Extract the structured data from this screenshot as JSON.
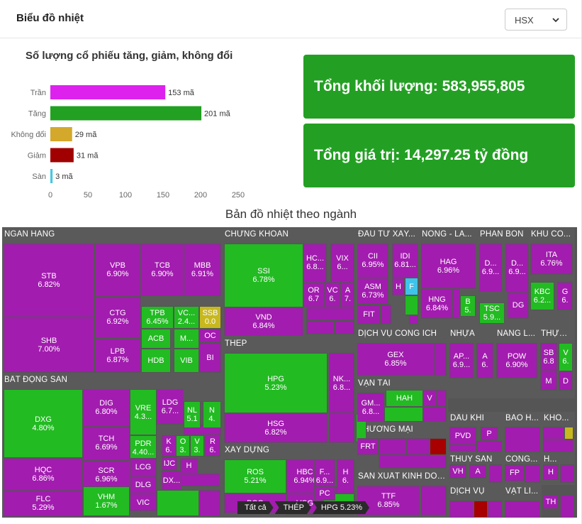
{
  "header": {
    "title": "Biểu đồ nhiệt",
    "exchange": "HSX"
  },
  "chart_data": {
    "type": "bar",
    "orientation": "horizontal",
    "title": "Số lượng cổ phiếu tăng, giảm, không đổi",
    "categories": [
      "Trần",
      "Tăng",
      "Không đổi",
      "Giảm",
      "Sàn"
    ],
    "values": [
      153,
      201,
      29,
      31,
      3
    ],
    "value_labels": [
      "153 mã",
      "201 mã",
      "29 mã",
      "31 mã",
      "3 mã"
    ],
    "colors": [
      "#dd22ee",
      "#22a022",
      "#d4a82a",
      "#a00000",
      "#46c8e0"
    ],
    "xlim": [
      0,
      250
    ],
    "xticks": [
      "0",
      "50",
      "100",
      "150",
      "200",
      "250"
    ],
    "xlabel": "",
    "ylabel": "",
    "grid": false
  },
  "stats": {
    "volume": "Tổng khối lượng: 583,955,805",
    "value": "Tổng giá trị: 14,297.25 tỷ đồng"
  },
  "heatmap": {
    "title": "Bản đồ nhiệt theo ngành",
    "colors": {
      "ceiling": "#a21caf",
      "up": "#22bb22",
      "flat": "#c8b820",
      "down": "#a80000"
    },
    "sectors": [
      {
        "label": "NGÂN HÀNG",
        "tiles": [
          {
            "t": "STB",
            "v": "6.82%",
            "c": "ceiling"
          },
          {
            "t": "VPB",
            "v": "6.90%",
            "c": "ceiling"
          },
          {
            "t": "TCB",
            "v": "6.90%",
            "c": "ceiling"
          },
          {
            "t": "MBB",
            "v": "6.91%",
            "c": "ceiling"
          },
          {
            "t": "CTG",
            "v": "6.92%",
            "c": "ceiling"
          },
          {
            "t": "TPB",
            "v": "6.45%",
            "c": "up"
          },
          {
            "t": "VC...",
            "v": "2.4...",
            "c": "up"
          },
          {
            "t": "SSB",
            "v": "0.0",
            "c": "flat"
          },
          {
            "t": "ACB",
            "v": "",
            "c": "up"
          },
          {
            "t": "M...",
            "v": "",
            "c": "up"
          },
          {
            "t": "OC",
            "v": "",
            "c": "ceiling"
          },
          {
            "t": "SHB",
            "v": "7.00%",
            "c": "ceiling"
          },
          {
            "t": "LPB",
            "v": "6.87%",
            "c": "ceiling"
          },
          {
            "t": "HDB",
            "v": "",
            "c": "up"
          },
          {
            "t": "VIB",
            "v": "",
            "c": "up"
          },
          {
            "t": "BI",
            "v": "",
            "c": "ceiling"
          }
        ]
      },
      {
        "label": "CHỨNG KHOÁN",
        "tiles": [
          {
            "t": "SSI",
            "v": "6.78%",
            "c": "up"
          },
          {
            "t": "HC...",
            "v": "6.8...",
            "c": "ceiling"
          },
          {
            "t": "VIX",
            "v": "6...",
            "c": "ceiling"
          },
          {
            "t": "OR",
            "v": "6.7",
            "c": "ceiling"
          },
          {
            "t": "VC",
            "v": "6.",
            "c": "ceiling"
          },
          {
            "t": "A",
            "v": "7.",
            "c": "ceiling"
          },
          {
            "t": "VND",
            "v": "6.84%",
            "c": "ceiling"
          }
        ]
      },
      {
        "label": "ĐẦU TƯ XÂY...",
        "tiles": [
          {
            "t": "CII",
            "v": "6.95%",
            "c": "ceiling"
          },
          {
            "t": "IDI",
            "v": "6.81...",
            "c": "ceiling"
          },
          {
            "t": "ASM",
            "v": "6.73%",
            "c": "ceiling"
          },
          {
            "t": "H",
            "v": "",
            "c": "ceiling"
          },
          {
            "t": "F",
            "v": "",
            "c": "floor"
          },
          {
            "t": "FIT",
            "v": "",
            "c": "ceiling"
          }
        ]
      },
      {
        "label": "NÔNG - LÂ...",
        "tiles": [
          {
            "t": "HAG",
            "v": "6.96%",
            "c": "ceiling"
          },
          {
            "t": "HNG",
            "v": "6.84%",
            "c": "ceiling"
          },
          {
            "t": "B",
            "v": "5.",
            "c": "up"
          }
        ]
      },
      {
        "label": "PHÂN BÓN",
        "tiles": [
          {
            "t": "D...",
            "v": "6.9...",
            "c": "ceiling"
          },
          {
            "t": "D...",
            "v": "6.9...",
            "c": "ceiling"
          },
          {
            "t": "TSC",
            "v": "5.9...",
            "c": "up"
          },
          {
            "t": "DG",
            "v": "",
            "c": "ceiling"
          }
        ]
      },
      {
        "label": "KHU CÔ...",
        "tiles": [
          {
            "t": "ITA",
            "v": "6.76%",
            "c": "ceiling"
          },
          {
            "t": "KBC",
            "v": "6.2...",
            "c": "up"
          },
          {
            "t": "G",
            "v": "6.",
            "c": "ceiling"
          }
        ]
      },
      {
        "label": "DỊCH VỤ CÔNG ÍCH",
        "tiles": [
          {
            "t": "GEX",
            "v": "6.85%",
            "c": "ceiling"
          }
        ]
      },
      {
        "label": "NHỰA",
        "tiles": [
          {
            "t": "AP...",
            "v": "6.9...",
            "c": "ceiling"
          },
          {
            "t": "A",
            "v": "6.",
            "c": "ceiling"
          }
        ]
      },
      {
        "label": "NĂNG L...",
        "tiles": [
          {
            "t": "POW",
            "v": "6.90%",
            "c": "ceiling"
          }
        ]
      },
      {
        "label": "THỰC ...",
        "tiles": [
          {
            "t": "SB",
            "v": "6.8",
            "c": "ceiling"
          },
          {
            "t": "V",
            "v": "6.",
            "c": "up"
          },
          {
            "t": "M",
            "v": "",
            "c": "ceiling"
          },
          {
            "t": "D",
            "v": "",
            "c": "ceiling"
          }
        ]
      },
      {
        "label": "THÉP",
        "tiles": [
          {
            "t": "HPG",
            "v": "5.23%",
            "c": "up"
          },
          {
            "t": "NK...",
            "v": "6.8...",
            "c": "ceiling"
          },
          {
            "t": "HSG",
            "v": "6.82%",
            "c": "ceiling"
          }
        ]
      },
      {
        "label": "VẬN TẢI",
        "tiles": [
          {
            "t": "HAH",
            "v": "",
            "c": "up"
          },
          {
            "t": "GM...",
            "v": "6.8...",
            "c": "ceiling"
          },
          {
            "t": "V",
            "v": "",
            "c": "ceiling"
          }
        ]
      },
      {
        "label": "DẦU KHÍ",
        "tiles": [
          {
            "t": "PVD",
            "v": "",
            "c": "ceiling"
          },
          {
            "t": "P",
            "v": "",
            "c": "ceiling"
          }
        ]
      },
      {
        "label": "BẢO H...",
        "tiles": []
      },
      {
        "label": "KHO...",
        "tiles": []
      },
      {
        "label": "BẤT ĐỘNG SẢN",
        "tiles": [
          {
            "t": "DXG",
            "v": "4.80%",
            "c": "up"
          },
          {
            "t": "DIG",
            "v": "6.80%",
            "c": "ceiling"
          },
          {
            "t": "VRE",
            "v": "4.3...",
            "c": "up"
          },
          {
            "t": "LDG",
            "v": "6.7...",
            "c": "ceiling"
          },
          {
            "t": "NL",
            "v": "5.1",
            "c": "up"
          },
          {
            "t": "N",
            "v": "4.",
            "c": "up"
          },
          {
            "t": "TCH",
            "v": "6.69%",
            "c": "ceiling"
          },
          {
            "t": "PDR",
            "v": "4.40...",
            "c": "up"
          },
          {
            "t": "K",
            "v": "6.",
            "c": "ceiling"
          },
          {
            "t": "O",
            "v": "3.",
            "c": "up"
          },
          {
            "t": "V",
            "v": "3.",
            "c": "up"
          },
          {
            "t": "R",
            "v": "6.",
            "c": "ceiling"
          },
          {
            "t": "HQC",
            "v": "6.86%",
            "c": "ceiling"
          },
          {
            "t": "SCR",
            "v": "6.96%",
            "c": "ceiling"
          },
          {
            "t": "LCG",
            "v": "",
            "c": "ceiling"
          },
          {
            "t": "IJC",
            "v": "",
            "c": "ceiling"
          },
          {
            "t": "H",
            "v": "",
            "c": "ceiling"
          },
          {
            "t": "DLG",
            "v": "",
            "c": "ceiling"
          },
          {
            "t": "DX...",
            "v": "",
            "c": "ceiling"
          },
          {
            "t": "FLC",
            "v": "5.29%",
            "c": "ceiling"
          },
          {
            "t": "VHM",
            "v": "1.67%",
            "c": "up"
          },
          {
            "t": "VIC",
            "v": "",
            "c": "ceiling"
          }
        ]
      },
      {
        "label": "XÂY DỰNG",
        "tiles": [
          {
            "t": "ROS",
            "v": "5.21%",
            "c": "up"
          },
          {
            "t": "HBC",
            "v": "6.94%",
            "c": "ceiling"
          },
          {
            "t": "F...",
            "v": "6.9...",
            "c": "ceiling"
          },
          {
            "t": "H",
            "v": "6.",
            "c": "ceiling"
          },
          {
            "t": "BCG",
            "v": "",
            "c": "ceiling"
          },
          {
            "t": "VCG",
            "v": "",
            "c": "ceiling"
          },
          {
            "t": "PC",
            "v": "",
            "c": "ceiling"
          }
        ]
      },
      {
        "label": "THƯƠNG MẠI",
        "tiles": [
          {
            "t": "FRT",
            "v": "",
            "c": "ceiling"
          }
        ]
      },
      {
        "label": "SẢN XUẤT KINH DOA...",
        "tiles": [
          {
            "t": "TTF",
            "v": "6.85%",
            "c": "ceiling"
          }
        ]
      },
      {
        "label": "THỦY SẢN",
        "tiles": [
          {
            "t": "VH",
            "v": "",
            "c": "ceiling"
          },
          {
            "t": "A",
            "v": "",
            "c": "ceiling"
          }
        ]
      },
      {
        "label": "CÔNG...",
        "tiles": [
          {
            "t": "FP",
            "v": "",
            "c": "ceiling"
          }
        ]
      },
      {
        "label": "H...",
        "tiles": [
          {
            "t": "H",
            "v": "",
            "c": "ceiling"
          }
        ]
      },
      {
        "label": "DỊCH VỤ",
        "tiles": []
      },
      {
        "label": "VẬT LI...",
        "tiles": [
          {
            "t": "TH",
            "v": "",
            "c": "ceiling"
          }
        ]
      }
    ]
  },
  "breadcrumb": [
    "Tất cả",
    "THÉP",
    "HPG 5.23%"
  ]
}
